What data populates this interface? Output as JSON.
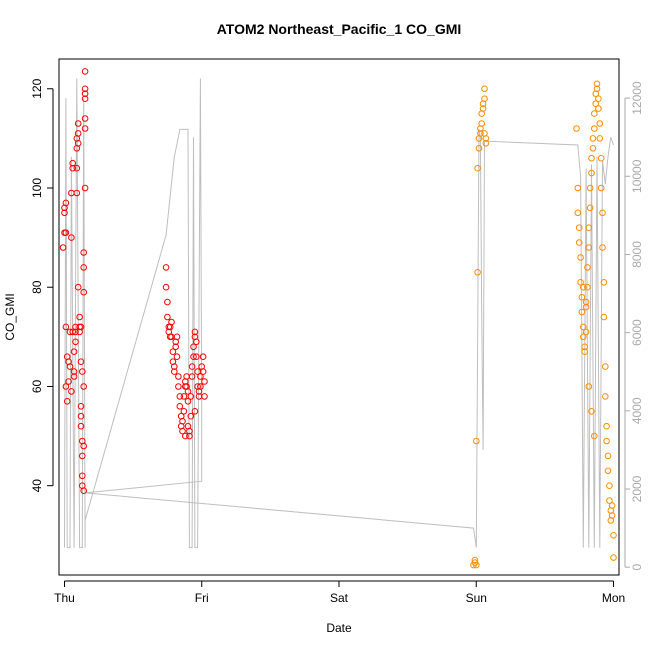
{
  "chart_data": {
    "type": "scatter",
    "title": "ATOM2 Northeast_Pacific_1 CO_GMI",
    "xlabel": "Date",
    "ylabel": "CO_GMI",
    "x_ticks": [
      "Thu",
      "Fri",
      "Sat",
      "Sun",
      "Mon"
    ],
    "xlim": [
      -0.04,
      4.04
    ],
    "ylim": [
      22,
      126
    ],
    "y_ticks": [
      40,
      60,
      80,
      100,
      120
    ],
    "y2lim": [
      -200,
      13000
    ],
    "y2_ticks": [
      0,
      2000,
      4000,
      6000,
      8000,
      10000,
      12000
    ],
    "grid": false,
    "colors": {
      "red_series": "#ff0000",
      "orange_series": "#ff8c00",
      "altitude_line": "#bebebe"
    },
    "series": [
      {
        "color": "#ff0000",
        "points": [
          [
            -0.01,
            88
          ],
          [
            0.0,
            91
          ],
          [
            0.0,
            95
          ],
          [
            0.0,
            96
          ],
          [
            0.01,
            97
          ],
          [
            0.01,
            91
          ],
          [
            0.01,
            72
          ],
          [
            0.01,
            60
          ],
          [
            0.02,
            57
          ],
          [
            0.02,
            66
          ],
          [
            0.03,
            65
          ],
          [
            0.03,
            61
          ],
          [
            0.04,
            64
          ],
          [
            0.04,
            71
          ],
          [
            0.05,
            59
          ],
          [
            0.05,
            90
          ],
          [
            0.05,
            99
          ],
          [
            0.06,
            104
          ],
          [
            0.06,
            105
          ],
          [
            0.06,
            71
          ],
          [
            0.07,
            67
          ],
          [
            0.07,
            63
          ],
          [
            0.07,
            62
          ],
          [
            0.08,
            69
          ],
          [
            0.08,
            72
          ],
          [
            0.08,
            71
          ],
          [
            0.09,
            99
          ],
          [
            0.09,
            104
          ],
          [
            0.09,
            110
          ],
          [
            0.09,
            108
          ],
          [
            0.1,
            109
          ],
          [
            0.1,
            111
          ],
          [
            0.1,
            113
          ],
          [
            0.1,
            80
          ],
          [
            0.11,
            74
          ],
          [
            0.11,
            72
          ],
          [
            0.11,
            71
          ],
          [
            0.12,
            72
          ],
          [
            0.12,
            56
          ],
          [
            0.12,
            54
          ],
          [
            0.12,
            52
          ],
          [
            0.13,
            49
          ],
          [
            0.13,
            46
          ],
          [
            0.13,
            42
          ],
          [
            0.13,
            40
          ],
          [
            0.14,
            39
          ],
          [
            0.14,
            48
          ],
          [
            0.14,
            60
          ],
          [
            0.14,
            79
          ],
          [
            0.14,
            84
          ],
          [
            0.14,
            87
          ],
          [
            0.15,
            100
          ],
          [
            0.15,
            112
          ],
          [
            0.15,
            114
          ],
          [
            0.15,
            118
          ],
          [
            0.15,
            119
          ],
          [
            0.15,
            120
          ],
          [
            0.15,
            123.5
          ],
          [
            0.12,
            65
          ],
          [
            0.13,
            63
          ],
          [
            0.74,
            84
          ],
          [
            0.74,
            80
          ],
          [
            0.75,
            77
          ],
          [
            0.75,
            74
          ],
          [
            0.76,
            72
          ],
          [
            0.76,
            71
          ],
          [
            0.77,
            70
          ],
          [
            0.77,
            72
          ],
          [
            0.78,
            73
          ],
          [
            0.78,
            70
          ],
          [
            0.79,
            67
          ],
          [
            0.79,
            65
          ],
          [
            0.8,
            63
          ],
          [
            0.8,
            64
          ],
          [
            0.81,
            68
          ],
          [
            0.81,
            69
          ],
          [
            0.82,
            70
          ],
          [
            0.82,
            66
          ],
          [
            0.83,
            62
          ],
          [
            0.83,
            60
          ],
          [
            0.84,
            58
          ],
          [
            0.84,
            56
          ],
          [
            0.85,
            54
          ],
          [
            0.85,
            52
          ],
          [
            0.86,
            51
          ],
          [
            0.86,
            53
          ],
          [
            0.87,
            55
          ],
          [
            0.87,
            58
          ],
          [
            0.88,
            60
          ],
          [
            0.88,
            61
          ],
          [
            0.89,
            62
          ],
          [
            0.89,
            60
          ],
          [
            0.9,
            59
          ],
          [
            0.9,
            57
          ],
          [
            0.9,
            52
          ],
          [
            0.91,
            50
          ],
          [
            0.91,
            51
          ],
          [
            0.92,
            54
          ],
          [
            0.92,
            58
          ],
          [
            0.93,
            62
          ],
          [
            0.93,
            64
          ],
          [
            0.94,
            66
          ],
          [
            0.94,
            68
          ],
          [
            0.95,
            70
          ],
          [
            0.95,
            71
          ],
          [
            0.96,
            69
          ],
          [
            0.96,
            66
          ],
          [
            0.97,
            63
          ],
          [
            0.97,
            60
          ],
          [
            0.98,
            59
          ],
          [
            0.98,
            58
          ],
          [
            0.99,
            60
          ],
          [
            0.99,
            62
          ],
          [
            1.0,
            64
          ],
          [
            1.01,
            66
          ],
          [
            1.01,
            63
          ],
          [
            1.02,
            61
          ],
          [
            1.02,
            58
          ],
          [
            0.88,
            50
          ],
          [
            0.95,
            55
          ]
        ]
      },
      {
        "color": "#ff8c00",
        "points": [
          [
            2.98,
            24
          ],
          [
            2.99,
            24.5
          ],
          [
            2.99,
            25
          ],
          [
            3.0,
            24
          ],
          [
            3.0,
            49
          ],
          [
            3.01,
            83
          ],
          [
            3.01,
            104
          ],
          [
            3.02,
            108
          ],
          [
            3.02,
            110
          ],
          [
            3.03,
            111
          ],
          [
            3.03,
            112
          ],
          [
            3.04,
            113
          ],
          [
            3.04,
            115
          ],
          [
            3.05,
            116
          ],
          [
            3.05,
            117
          ],
          [
            3.06,
            118
          ],
          [
            3.06,
            120
          ],
          [
            3.06,
            111
          ],
          [
            3.07,
            109
          ],
          [
            3.07,
            110
          ],
          [
            3.73,
            112
          ],
          [
            3.74,
            100
          ],
          [
            3.74,
            95
          ],
          [
            3.75,
            92
          ],
          [
            3.75,
            89
          ],
          [
            3.76,
            86
          ],
          [
            3.76,
            81
          ],
          [
            3.77,
            78
          ],
          [
            3.77,
            75
          ],
          [
            3.78,
            72
          ],
          [
            3.78,
            70
          ],
          [
            3.79,
            68
          ],
          [
            3.79,
            67
          ],
          [
            3.8,
            71
          ],
          [
            3.8,
            76
          ],
          [
            3.81,
            80
          ],
          [
            3.81,
            84
          ],
          [
            3.82,
            88
          ],
          [
            3.82,
            92
          ],
          [
            3.83,
            96
          ],
          [
            3.83,
            100
          ],
          [
            3.84,
            103
          ],
          [
            3.84,
            106
          ],
          [
            3.85,
            108
          ],
          [
            3.85,
            110
          ],
          [
            3.86,
            112
          ],
          [
            3.86,
            115
          ],
          [
            3.87,
            117
          ],
          [
            3.87,
            119
          ],
          [
            3.88,
            120
          ],
          [
            3.88,
            121
          ],
          [
            3.89,
            118
          ],
          [
            3.89,
            116
          ],
          [
            3.9,
            113
          ],
          [
            3.9,
            110
          ],
          [
            3.91,
            106
          ],
          [
            3.91,
            100
          ],
          [
            3.92,
            95
          ],
          [
            3.92,
            88
          ],
          [
            3.93,
            81
          ],
          [
            3.93,
            74
          ],
          [
            3.94,
            64
          ],
          [
            3.94,
            58
          ],
          [
            3.95,
            52
          ],
          [
            3.95,
            49
          ],
          [
            3.96,
            46
          ],
          [
            3.96,
            43
          ],
          [
            3.97,
            40
          ],
          [
            3.97,
            37
          ],
          [
            3.98,
            35
          ],
          [
            3.98,
            33
          ],
          [
            3.99,
            34
          ],
          [
            3.99,
            36
          ],
          [
            4.0,
            30
          ],
          [
            4.0,
            25.5
          ],
          [
            3.78,
            80
          ],
          [
            3.8,
            77
          ],
          [
            3.82,
            60
          ],
          [
            3.84,
            55
          ],
          [
            3.86,
            50
          ]
        ]
      }
    ],
    "altitude_line": [
      [
        0.0,
        500
      ],
      [
        0.01,
        12000
      ],
      [
        0.02,
        500
      ],
      [
        0.04,
        500
      ],
      [
        0.05,
        10500
      ],
      [
        0.07,
        500
      ],
      [
        0.09,
        12500
      ],
      [
        0.11,
        500
      ],
      [
        0.13,
        500
      ],
      [
        0.14,
        12000
      ],
      [
        0.15,
        500
      ],
      [
        0.15,
        1200
      ],
      [
        0.74,
        8500
      ],
      [
        0.77,
        9500
      ],
      [
        0.8,
        10500
      ],
      [
        0.83,
        11000
      ],
      [
        0.84,
        11200
      ],
      [
        0.9,
        11200
      ],
      [
        0.91,
        500
      ],
      [
        0.93,
        500
      ],
      [
        0.94,
        11000
      ],
      [
        0.95,
        500
      ],
      [
        0.97,
        500
      ],
      [
        0.99,
        12500
      ],
      [
        1.0,
        4000
      ],
      [
        1.0,
        2500
      ],
      [
        1.0,
        2200
      ],
      [
        0.15,
        1900
      ],
      [
        2.98,
        1000
      ],
      [
        3.0,
        500
      ],
      [
        3.02,
        11200
      ],
      [
        3.03,
        11000
      ],
      [
        3.04,
        6500
      ],
      [
        3.05,
        3000
      ],
      [
        3.06,
        10900
      ],
      [
        3.74,
        10800
      ],
      [
        3.76,
        10000
      ],
      [
        3.78,
        500
      ],
      [
        3.8,
        10200
      ],
      [
        3.82,
        500
      ],
      [
        3.84,
        10300
      ],
      [
        3.86,
        500
      ],
      [
        3.88,
        10500
      ],
      [
        3.9,
        500
      ],
      [
        3.92,
        10400
      ],
      [
        3.94,
        9800
      ],
      [
        3.96,
        10500
      ],
      [
        3.98,
        11000
      ],
      [
        4.0,
        10800
      ]
    ]
  }
}
